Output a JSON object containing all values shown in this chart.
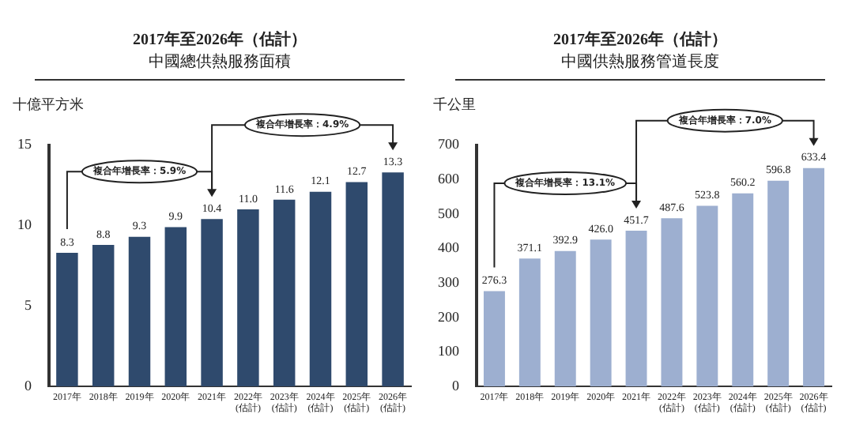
{
  "chart_data": [
    {
      "type": "bar",
      "title": "2017年至2026年（估計）",
      "subtitle": "中國總供熱服務面積",
      "ylabel": "十億平方米",
      "categories": [
        "2017年",
        "2018年",
        "2019年",
        "2020年",
        "2021年",
        "2022年\n(估計)",
        "2023年\n(估計)",
        "2024年\n(估計)",
        "2025年\n(估計)",
        "2026年\n(估計)"
      ],
      "values": [
        8.3,
        8.8,
        9.3,
        9.9,
        10.4,
        11.0,
        11.6,
        12.1,
        12.7,
        13.3
      ],
      "value_labels": [
        "8.3",
        "8.8",
        "9.3",
        "9.9",
        "10.4",
        "11.0",
        "11.6",
        "12.1",
        "12.7",
        "13.3"
      ],
      "color": "#2f4a6d",
      "ylim": [
        0,
        15
      ],
      "yticks": [
        0,
        5,
        10,
        15
      ],
      "grid": false,
      "legend": false,
      "annotations": [
        "複合年增長率：5.9%",
        "複合年增長率：4.9%"
      ]
    },
    {
      "type": "bar",
      "title": "2017年至2026年（估計）",
      "subtitle": "中國供熱服務管道長度",
      "ylabel": "千公里",
      "categories": [
        "2017年",
        "2018年",
        "2019年",
        "2020年",
        "2021年",
        "2022年\n(估計)",
        "2023年\n(估計)",
        "2024年\n(估計)",
        "2025年\n(估計)",
        "2026年\n(估計)"
      ],
      "values": [
        276.3,
        371.1,
        392.9,
        426.0,
        451.7,
        487.6,
        523.8,
        560.2,
        596.8,
        633.4
      ],
      "value_labels": [
        "276.3",
        "371.1",
        "392.9",
        "426.0",
        "451.7",
        "487.6",
        "523.8",
        "560.2",
        "596.8",
        "633.4"
      ],
      "color": "#9dafd0",
      "ylim": [
        0,
        700
      ],
      "yticks": [
        0,
        100,
        200,
        300,
        400,
        500,
        600,
        700
      ],
      "grid": false,
      "legend": false,
      "annotations": [
        "複合年增長率：13.1%",
        "複合年增長率：7.0%"
      ]
    }
  ]
}
